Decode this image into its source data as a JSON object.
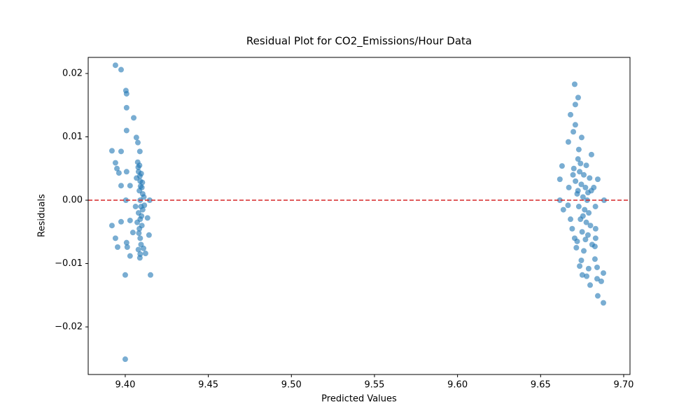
{
  "chart_data": {
    "type": "scatter",
    "title": "Residual Plot for CO2_Emissions/Hour Data",
    "x_label": "Predicted Values",
    "y_label": "Residuals",
    "color": "#1f77b4",
    "alpha": 0.6,
    "hline": {
      "value": 0,
      "color": "#d62728"
    },
    "xlim": [
      9.3777,
      9.7038
    ],
    "ylim": [
      -0.02751,
      0.02254
    ],
    "xticks": [
      {
        "value": 9.4,
        "label": "9.40"
      },
      {
        "value": 9.45,
        "label": "9.45"
      },
      {
        "value": 9.5,
        "label": "9.50"
      },
      {
        "value": 9.55,
        "label": "9.55"
      },
      {
        "value": 9.6,
        "label": "9.60"
      },
      {
        "value": 9.65,
        "label": "9.65"
      },
      {
        "value": 9.7,
        "label": "9.70"
      }
    ],
    "yticks": [
      {
        "value": -0.02,
        "label": "−0.02"
      },
      {
        "value": -0.01,
        "label": "−0.01"
      },
      {
        "value": 0,
        "label": "0.00"
      },
      {
        "value": 0.01,
        "label": "0.01"
      },
      {
        "value": 0.02,
        "label": "0.02"
      }
    ],
    "x": [
      9.3941,
      9.3975,
      9.4004,
      9.4008,
      9.4008,
      9.4051,
      9.4008,
      9.4067,
      9.4076,
      9.392,
      9.3975,
      9.4088,
      9.3941,
      9.395,
      9.3962,
      9.4008,
      9.3975,
      9.4029,
      9.4004,
      9.4147,
      9.392,
      9.3975,
      9.4029,
      9.4134,
      9.4143,
      9.4046,
      9.3941,
      9.3954,
      9.4008,
      9.4012,
      9.4029,
      9.4,
      9.4152,
      9.4,
      9.411,
      9.4088,
      9.4122,
      9.4075,
      9.408,
      9.409,
      9.4085,
      9.409,
      9.4095,
      9.408,
      9.409,
      9.4085,
      9.409,
      9.4095,
      9.41,
      9.4105,
      9.4105,
      9.41,
      9.4078,
      9.4088,
      9.4092,
      9.4098,
      9.4082,
      9.4112,
      9.4115,
      9.4068,
      9.4062,
      9.4072,
      9.409,
      9.4079,
      9.4103,
      9.4096,
      9.4086,
      9.6705,
      9.6726,
      9.6709,
      9.668,
      9.6709,
      9.6697,
      9.6747,
      9.6667,
      9.6806,
      9.6629,
      9.6616,
      9.6844,
      9.6616,
      9.6882,
      9.6637,
      9.6831,
      9.6831,
      9.6827,
      9.6735,
      9.6751,
      9.6777,
      9.6798,
      9.684,
      9.6865,
      9.6878,
      9.6844,
      9.6878,
      9.684,
      9.6827,
      9.6789,
      9.67,
      9.671,
      9.672,
      9.673,
      9.674,
      9.675,
      9.676,
      9.677,
      9.678,
      9.679,
      9.68,
      9.6705,
      9.6715,
      9.6725,
      9.6735,
      9.6745,
      9.6755,
      9.6765,
      9.6775,
      9.6785,
      9.6795,
      9.6805,
      9.668,
      9.667,
      9.669,
      9.6665,
      9.681,
      9.682,
      9.683,
      9.673,
      9.676,
      9.674,
      9.677,
      9.6745,
      9.672,
      9.6775,
      9.6725,
      9.6755,
      9.6785,
      9.6695
    ],
    "values": [
      0.0213,
      0.0206,
      0.0173,
      0.0168,
      0.0146,
      0.013,
      0.011,
      0.0099,
      0.0091,
      0.0078,
      0.0077,
      0.0077,
      0.0059,
      0.005,
      0.0043,
      0.0045,
      0.0023,
      0.0023,
      0,
      0,
      -0.004,
      -0.0034,
      -0.0032,
      -0.0028,
      -0.0055,
      -0.0051,
      -0.006,
      -0.0074,
      -0.0067,
      -0.0074,
      -0.0088,
      -0.0118,
      -0.0118,
      -0.0251,
      -0.0076,
      -0.0091,
      -0.0084,
      0.006,
      0.0045,
      0.003,
      0.0015,
      0,
      -0.001,
      -0.002,
      -0.003,
      -0.0045,
      -0.006,
      -0.007,
      0.002,
      0.001,
      -0.0015,
      -0.004,
      0.0052,
      0.0038,
      0.0022,
      -0.0025,
      -0.0052,
      0.0005,
      -0.0008,
      0.0035,
      -0.001,
      -0.0035,
      -0.0085,
      -0.0078,
      0.0028,
      0.0042,
      0.0055,
      0.0183,
      0.0162,
      0.0151,
      0.0135,
      0.0119,
      0.0108,
      0.0099,
      0.0092,
      0.0072,
      0.0054,
      0.0033,
      0.0033,
      0,
      0,
      -0.0015,
      -0.0045,
      -0.006,
      -0.0073,
      -0.0104,
      -0.0118,
      -0.012,
      -0.0134,
      -0.0124,
      -0.0128,
      -0.0115,
      -0.0151,
      -0.0162,
      -0.0106,
      -0.0093,
      -0.0108,
      0.005,
      0.003,
      0.001,
      -0.001,
      -0.003,
      -0.005,
      0.004,
      0.002,
      0,
      -0.002,
      -0.004,
      -0.006,
      -0.0075,
      0.0065,
      0.0045,
      0.0025,
      0.0005,
      -0.0015,
      -0.0035,
      -0.0055,
      0.0035,
      0.0015,
      -0.003,
      0.002,
      -0.0045,
      -0.0008,
      -0.007,
      0.002,
      -0.001,
      0.008,
      -0.008,
      0.0058,
      -0.0062,
      -0.0095,
      -0.0065,
      0.0055,
      0.0015,
      -0.0025,
      0.0012,
      0.004
    ]
  }
}
